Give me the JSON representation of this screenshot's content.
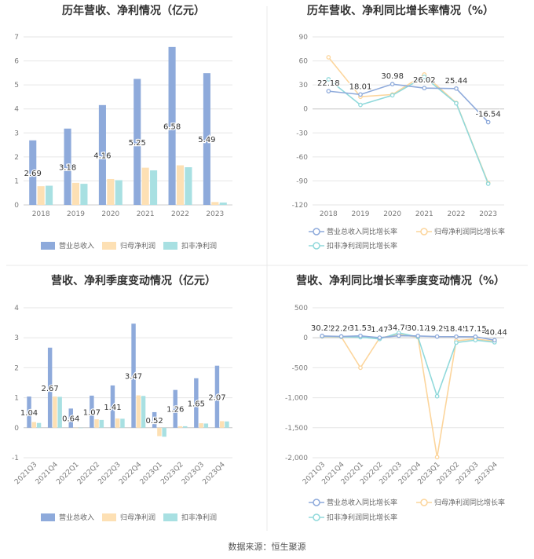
{
  "colors": {
    "revenue": "#8eaadb",
    "net": "#fde0b4",
    "deducted": "#a8e0e2",
    "grid": "#e6e6e6",
    "axis": "#cccccc",
    "divider": "#e8e8e8"
  },
  "footer": "数据来源：恒生聚源",
  "chart_data": [
    {
      "type": "bar",
      "title": "历年营收、净利情况（亿元）",
      "categories": [
        "2018",
        "2019",
        "2020",
        "2021",
        "2022",
        "2023"
      ],
      "ylim": [
        0,
        7
      ],
      "yticks": [
        0,
        1,
        2,
        3,
        4,
        5,
        6,
        7
      ],
      "grid": true,
      "legend_position": "bottom",
      "series": [
        {
          "name": "营业总收入",
          "values": [
            2.69,
            3.18,
            4.16,
            5.25,
            6.58,
            5.49
          ],
          "labels": [
            "2.69",
            "3.18",
            "4.16",
            "5.25",
            "6.58",
            "5.49"
          ]
        },
        {
          "name": "归母净利润",
          "values": [
            0.78,
            0.92,
            1.08,
            1.55,
            1.65,
            0.12
          ]
        },
        {
          "name": "扣非净利润",
          "values": [
            0.8,
            0.88,
            1.03,
            1.44,
            1.57,
            0.1
          ]
        }
      ]
    },
    {
      "type": "line",
      "title": "历年营收、净利同比增长率情况（%）",
      "categories": [
        "2018",
        "2019",
        "2020",
        "2021",
        "2022",
        "2023"
      ],
      "ylim": [
        -120,
        90
      ],
      "yticks": [
        -120,
        -90,
        -60,
        -30,
        0,
        30,
        60,
        90
      ],
      "grid": true,
      "legend_position": "bottom",
      "series": [
        {
          "name": "营业总收入同比增长率",
          "values": [
            22.18,
            18.01,
            30.98,
            26.02,
            25.44,
            -16.54
          ],
          "labels": [
            "22.18",
            "18.01",
            "30.98",
            "26.02",
            "25.44",
            "-16.54"
          ]
        },
        {
          "name": "归母净利润同比增长率",
          "values": [
            64.5,
            15.2,
            18.0,
            43.0,
            7.5,
            -92.5
          ]
        },
        {
          "name": "扣非净利润同比增长率",
          "values": [
            37.0,
            5.0,
            17.0,
            40.0,
            7.0,
            -93.5
          ]
        }
      ]
    },
    {
      "type": "bar",
      "title": "营收、净利季度变动情况（亿元）",
      "categories": [
        "2021Q3",
        "2021Q4",
        "2022Q1",
        "2022Q2",
        "2022Q3",
        "2022Q4",
        "2023Q1",
        "2023Q2",
        "2023Q3",
        "2023Q4"
      ],
      "ylim": [
        -1,
        4
      ],
      "yticks": [
        -1,
        0,
        1,
        2,
        3,
        4
      ],
      "grid": true,
      "legend_position": "bottom",
      "series": [
        {
          "name": "营业总收入",
          "values": [
            1.04,
            2.67,
            0.64,
            1.07,
            1.41,
            3.47,
            0.52,
            1.26,
            1.65,
            2.07
          ],
          "labels": [
            "1.04",
            "2.67",
            "0.64",
            "1.07",
            "1.41",
            "3.47",
            "0.52",
            "1.26",
            "1.65",
            "2.07"
          ]
        },
        {
          "name": "归母净利润",
          "values": [
            0.19,
            1.04,
            0.0,
            0.28,
            0.31,
            1.08,
            -0.28,
            0.05,
            0.15,
            0.22
          ]
        },
        {
          "name": "扣非净利润",
          "values": [
            0.16,
            1.03,
            -0.01,
            0.26,
            0.3,
            1.06,
            -0.3,
            0.05,
            0.14,
            0.21
          ]
        }
      ]
    },
    {
      "type": "line",
      "title": "营收、净利同比增长率季度变动情况（%）",
      "categories": [
        "2021Q3",
        "2021Q4",
        "2022Q1",
        "2022Q2",
        "2022Q3",
        "2022Q4",
        "2023Q1",
        "2023Q2",
        "2023Q3",
        "2023Q4"
      ],
      "ylim": [
        -2000,
        500
      ],
      "yticks": [
        -2000,
        -1500,
        -1000,
        -500,
        0,
        500
      ],
      "ytick_labels": [
        "-2,000",
        "-1,500",
        "-1,000",
        "-500",
        "0",
        "500"
      ],
      "grid": true,
      "legend_position": "bottom",
      "series": [
        {
          "name": "营业总收入同比增长率",
          "values": [
            30.25,
            22.26,
            31.53,
            1.47,
            34.78,
            30.12,
            19.29,
            18.45,
            17.15,
            -40.44
          ],
          "labels": [
            "30.25",
            "22.26",
            "31.53",
            "1.47",
            "34.78",
            "30.12",
            "19.29",
            "18.45",
            "17.15",
            "-40.44"
          ]
        },
        {
          "name": "归母净利润同比增长率",
          "values": [
            20,
            15,
            -500,
            -5,
            60,
            10,
            -1990,
            -50,
            -20,
            -60
          ]
        },
        {
          "name": "扣非净利润同比增长率",
          "values": [
            25,
            18,
            10,
            -20,
            80,
            15,
            -975,
            -80,
            -40,
            -75
          ]
        }
      ]
    }
  ]
}
